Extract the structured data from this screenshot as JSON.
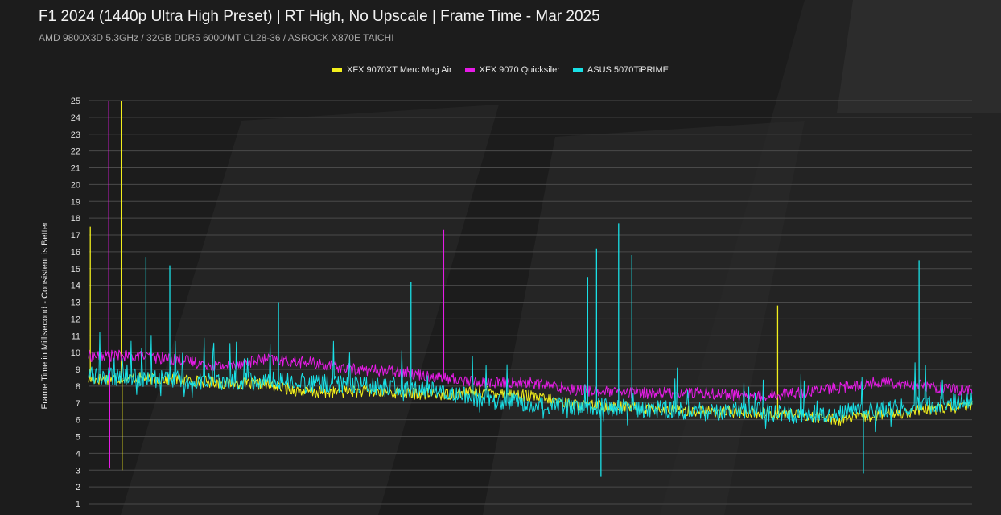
{
  "header": {
    "title": "F1 2024 (1440p Ultra High Preset) | RT High, No Upscale | Frame Time - Mar 2025",
    "subtitle": "AMD 9800X3D 5.3GHz / 32GB DDR5 6000/MT CL28-36 / ASROCK X870E TAICHI"
  },
  "chart_data": {
    "type": "line",
    "title": "F1 2024 (1440p Ultra High Preset) | RT High, No Upscale | Frame Time - Mar 2025",
    "subtitle": "AMD 9800X3D 5.3GHz / 32GB DDR5 6000/MT CL28-36 / ASROCK X870E TAICHI",
    "xlabel": "",
    "ylabel": "Frame Time in Millisecond - Consistent is Better",
    "ylim": [
      1,
      25
    ],
    "yticks": [
      "1",
      "2",
      "3",
      "4",
      "5",
      "6",
      "7",
      "8",
      "9",
      "10",
      "11",
      "12",
      "13",
      "14",
      "15",
      "16",
      "17",
      "18",
      "19",
      "20",
      "21",
      "22",
      "23",
      "24",
      "25"
    ],
    "x_range": [
      0,
      100
    ],
    "grid": "horizontal",
    "legend_position": "top-center",
    "series": [
      {
        "name": "XFX 9070XT Merc Mag Air",
        "color": "#f2ef1c",
        "x": [
          0,
          5,
          10,
          15,
          20,
          25,
          30,
          35,
          40,
          45,
          50,
          55,
          60,
          65,
          70,
          75,
          80,
          85,
          90,
          95,
          100
        ],
        "values": [
          8.4,
          8.5,
          8.4,
          8.2,
          8.1,
          7.6,
          7.7,
          7.6,
          7.5,
          7.7,
          7.4,
          6.9,
          6.8,
          6.6,
          6.5,
          6.4,
          6.3,
          6.0,
          6.3,
          6.6,
          6.8
        ],
        "spikes": [
          {
            "x": 0.2,
            "value": 17.5
          },
          {
            "x": 3.7,
            "value": 25
          },
          {
            "x": 3.8,
            "value": 3.0
          },
          {
            "x": 78,
            "value": 12.8
          }
        ]
      },
      {
        "name": "XFX 9070 Quicksiler",
        "color": "#e61be6",
        "x": [
          0,
          5,
          10,
          15,
          20,
          25,
          30,
          35,
          40,
          45,
          50,
          55,
          60,
          65,
          70,
          75,
          80,
          85,
          90,
          95,
          100
        ],
        "values": [
          9.8,
          9.8,
          9.6,
          9.2,
          9.6,
          9.4,
          9.0,
          8.9,
          8.5,
          8.2,
          8.2,
          7.8,
          7.6,
          7.6,
          7.6,
          7.4,
          7.6,
          7.9,
          8.3,
          8.0,
          7.7
        ],
        "spikes": [
          {
            "x": 2.3,
            "value": 25
          },
          {
            "x": 2.4,
            "value": 3.1
          },
          {
            "x": 40.2,
            "value": 17.3
          }
        ]
      },
      {
        "name": "ASUS 5070TiPRIME",
        "color": "#19e0e6",
        "x": [
          0,
          5,
          10,
          15,
          20,
          25,
          30,
          35,
          40,
          45,
          50,
          55,
          60,
          65,
          70,
          75,
          80,
          85,
          90,
          95,
          100
        ],
        "values": [
          8.7,
          8.5,
          8.4,
          8.2,
          8.4,
          8.2,
          8.1,
          7.8,
          7.7,
          7.2,
          7.0,
          6.8,
          6.7,
          6.6,
          6.5,
          6.5,
          6.3,
          6.4,
          6.6,
          6.9,
          7.1
        ],
        "spikes": [
          {
            "x": 6.5,
            "value": 15.7
          },
          {
            "x": 9.2,
            "value": 15.2
          },
          {
            "x": 21.5,
            "value": 13.0
          },
          {
            "x": 36.5,
            "value": 14.2
          },
          {
            "x": 56.5,
            "value": 14.5
          },
          {
            "x": 57.5,
            "value": 16.2
          },
          {
            "x": 60.0,
            "value": 17.7
          },
          {
            "x": 61.5,
            "value": 15.8
          },
          {
            "x": 94.0,
            "value": 15.5
          },
          {
            "x": 58.0,
            "value": 2.6
          },
          {
            "x": 87.7,
            "value": 2.8
          }
        ]
      }
    ]
  }
}
